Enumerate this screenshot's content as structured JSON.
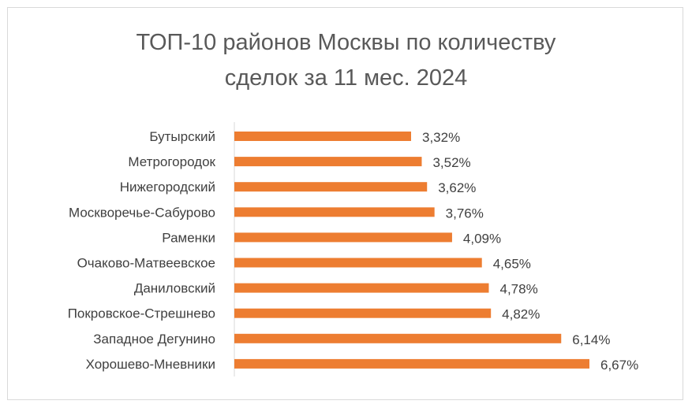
{
  "chart_data": {
    "type": "bar",
    "orientation": "horizontal",
    "title_lines": [
      "ТОП-10 районов Москвы по количеству",
      "сделок за 11 мес. 2024"
    ],
    "categories": [
      "Бутырский",
      "Метрогородок",
      "Нижегородский",
      "Москворечье-Сабурово",
      "Раменки",
      "Очаково-Матвеевское",
      "Даниловский",
      "Покровское-Стрешнево",
      "Западное Дегунино",
      "Хорошево-Мневники"
    ],
    "values": [
      3.32,
      3.52,
      3.62,
      3.76,
      4.09,
      4.65,
      4.78,
      4.82,
      6.14,
      6.67
    ],
    "labels": [
      "3,32%",
      "3,52%",
      "3,62%",
      "3,76%",
      "4,09%",
      "4,65%",
      "4,78%",
      "4,82%",
      "6,14%",
      "6,67%"
    ],
    "unit": "%",
    "xlim": [
      0,
      6.67
    ],
    "grid": false,
    "legend": "none",
    "bar_color": "#ED7D31"
  }
}
